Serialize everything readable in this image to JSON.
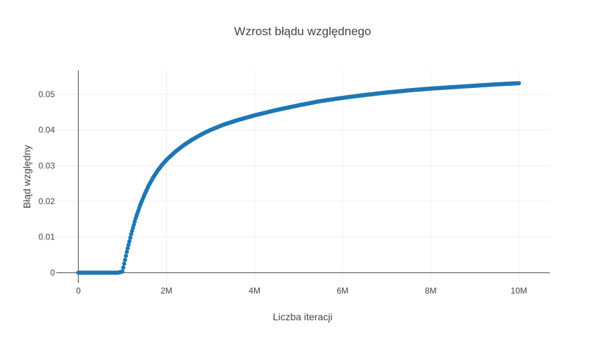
{
  "chart_data": {
    "type": "scatter",
    "title": "Wzrost błądu względnego",
    "xlabel": "Liczba iteracji",
    "ylabel": "Błąd względny",
    "xlim": [
      -500000,
      10700000
    ],
    "ylim": [
      -0.0025,
      0.0567
    ],
    "x_ticks": [
      0,
      2000000,
      4000000,
      6000000,
      8000000,
      10000000
    ],
    "x_tick_labels": [
      "0",
      "2M",
      "4M",
      "6M",
      "8M",
      "10M"
    ],
    "y_ticks": [
      0,
      0.01,
      0.02,
      0.03,
      0.04,
      0.05
    ],
    "y_tick_labels": [
      "0",
      "0.01",
      "0.02",
      "0.03",
      "0.04",
      "0.05"
    ],
    "grid": true,
    "legend": "none",
    "marker_color": "#1f77b4",
    "series": [
      {
        "x": [
          0,
          100000,
          200000,
          300000,
          400000,
          500000,
          600000,
          700000,
          800000,
          900000,
          1000000,
          1100000,
          1200000,
          1300000,
          1400000,
          1500000,
          1600000,
          1700000,
          1800000,
          1900000,
          2000000,
          2200000,
          2400000,
          2600000,
          2800000,
          3000000,
          3300000,
          3600000,
          4000000,
          4500000,
          5000000,
          5500000,
          6000000,
          6500000,
          7000000,
          7500000,
          8000000,
          8500000,
          9000000,
          9500000,
          10000000
        ],
        "y": [
          0,
          0,
          0,
          0,
          0,
          0,
          0,
          0,
          0,
          0,
          0.0003,
          0.0058,
          0.0108,
          0.0152,
          0.0188,
          0.0218,
          0.0245,
          0.0267,
          0.0286,
          0.0302,
          0.0316,
          0.0339,
          0.0358,
          0.0374,
          0.0388,
          0.04,
          0.0415,
          0.0427,
          0.0441,
          0.0456,
          0.0469,
          0.0481,
          0.049,
          0.0498,
          0.0505,
          0.0511,
          0.0516,
          0.052,
          0.0524,
          0.0528,
          0.0531
        ]
      }
    ]
  }
}
